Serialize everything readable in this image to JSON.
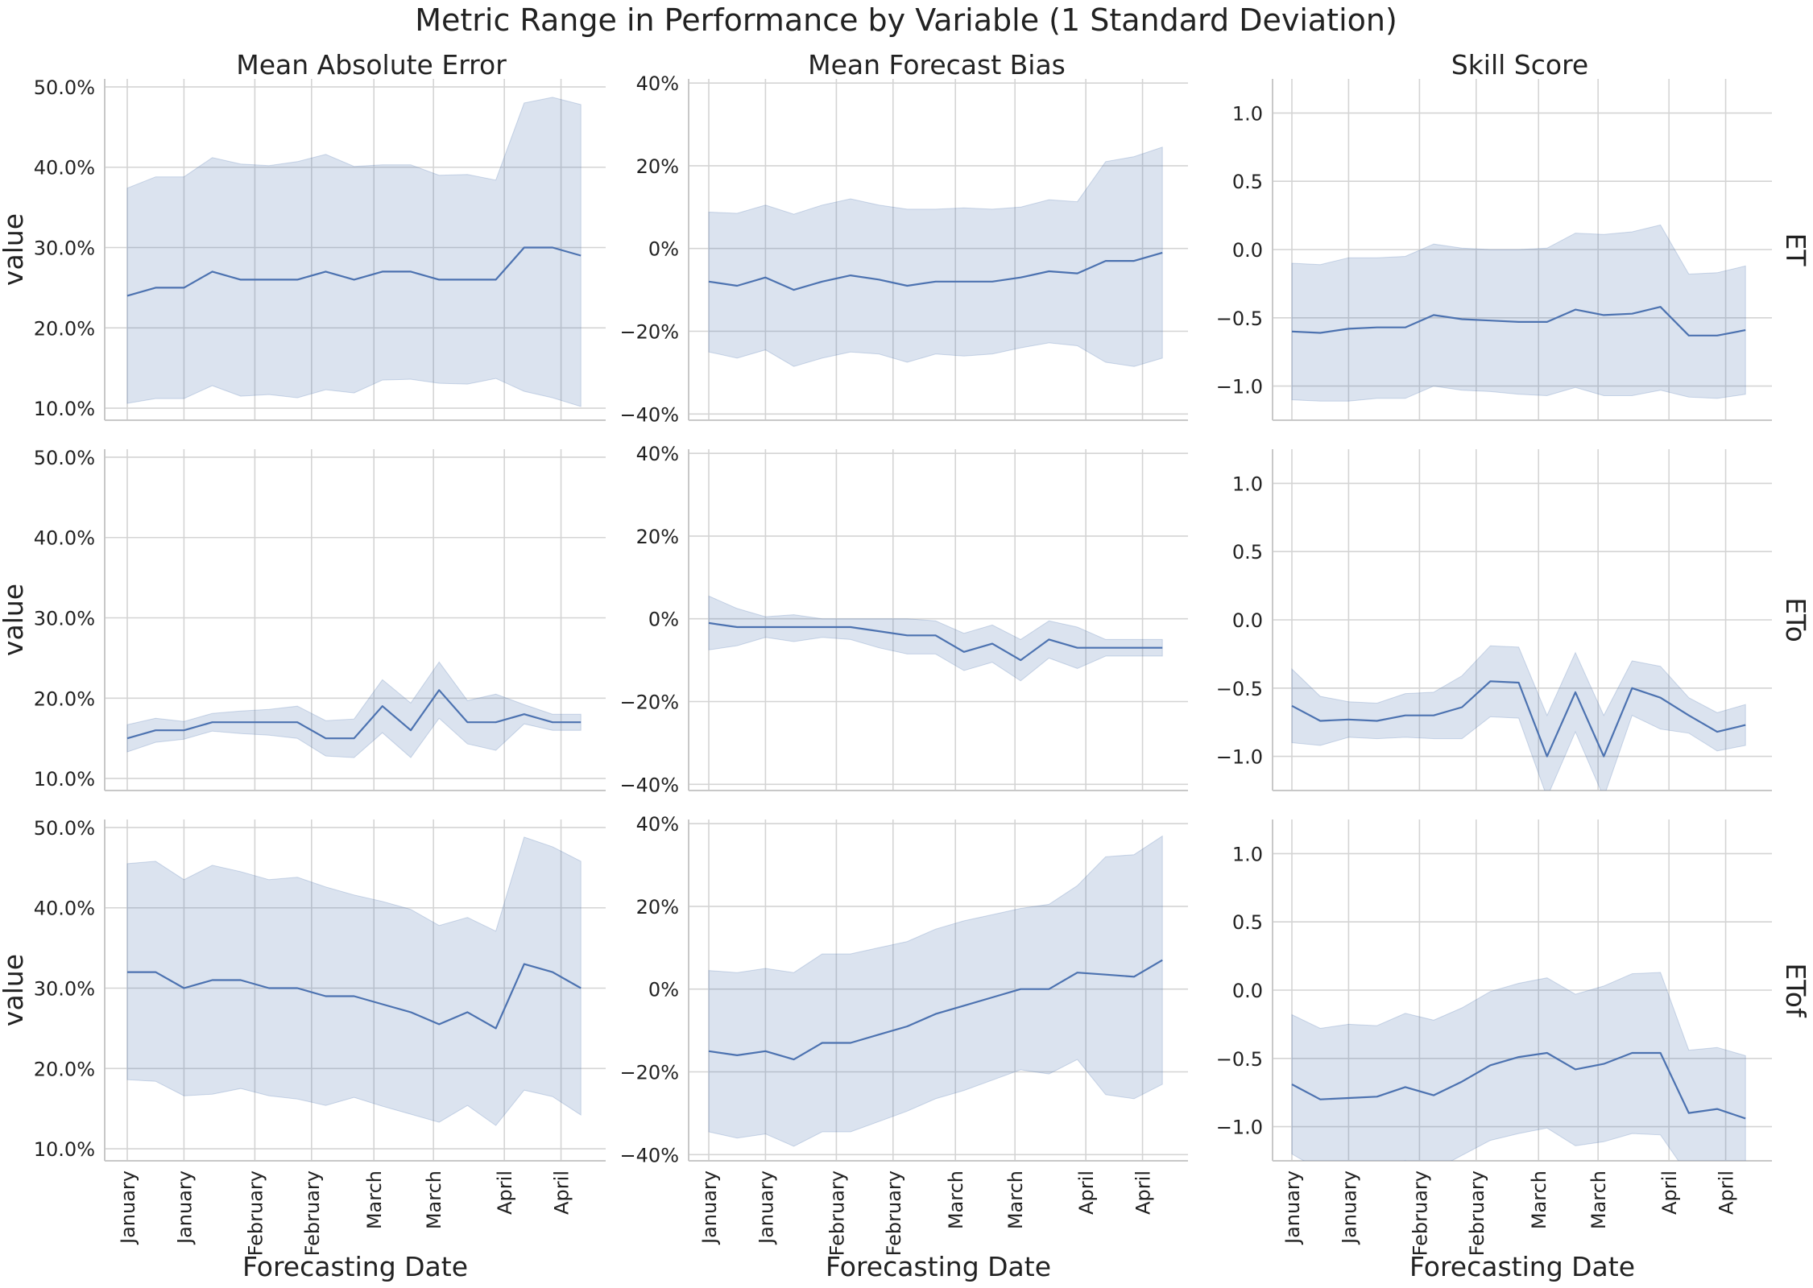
{
  "title": "Metric Range in Performance by Variable (1 Standard Deviation)",
  "columns": [
    "Mean Absolute Error",
    "Mean Forecast Bias",
    "Skill Score"
  ],
  "rows": [
    "ET",
    "ETo",
    "ETof"
  ],
  "xlabel": "Forecasting Date",
  "ylabel": "value",
  "colors": {
    "line": "#4c72b0",
    "band": "#4c72b0",
    "grid": "#d4d4d4"
  },
  "x_tick_labels": [
    "January",
    "January",
    "February",
    "February",
    "March",
    "March",
    "April",
    "April"
  ],
  "x_tick_positions": [
    0,
    2,
    4.5,
    6.5,
    8.7,
    10.8,
    13.3,
    15.3
  ],
  "x_range": [
    -0.45,
    16.75
  ],
  "y_axes": {
    "Mean Absolute Error": {
      "ylim": [
        0.085,
        0.51
      ],
      "ticks": [
        0.1,
        0.2,
        0.3,
        0.4,
        0.5
      ],
      "tick_labels": [
        "10.0%",
        "20.0%",
        "30.0%",
        "40.0%",
        "50.0%"
      ]
    },
    "Mean Forecast Bias": {
      "ylim": [
        -0.415,
        0.41
      ],
      "ticks": [
        -0.4,
        -0.2,
        0,
        0.2,
        0.4
      ],
      "tick_labels": [
        "−40%",
        "−20%",
        "0%",
        "20%",
        "40%"
      ]
    },
    "Skill Score": {
      "ylim": [
        -1.25,
        1.25
      ],
      "ticks": [
        -1.0,
        -0.5,
        0.0,
        0.5,
        1.0
      ],
      "tick_labels": [
        "−1.0",
        "−0.5",
        "0.0",
        "0.5",
        "1.0"
      ]
    }
  },
  "chart_data": [
    {
      "type": "area",
      "row": "ET",
      "col": "Mean Absolute Error",
      "x": [
        0,
        1,
        2,
        3,
        4,
        5,
        6,
        7,
        8,
        9,
        10,
        11,
        12,
        13,
        14,
        15,
        16
      ],
      "mean": [
        0.24,
        0.25,
        0.25,
        0.27,
        0.26,
        0.26,
        0.26,
        0.27,
        0.26,
        0.27,
        0.27,
        0.26,
        0.26,
        0.26,
        0.3,
        0.3,
        0.29
      ],
      "lower": [
        0.106,
        0.112,
        0.112,
        0.128,
        0.115,
        0.117,
        0.113,
        0.123,
        0.119,
        0.135,
        0.136,
        0.131,
        0.13,
        0.137,
        0.121,
        0.113,
        0.102
      ],
      "upper": [
        0.374,
        0.388,
        0.388,
        0.412,
        0.404,
        0.402,
        0.407,
        0.416,
        0.401,
        0.403,
        0.403,
        0.39,
        0.391,
        0.384,
        0.48,
        0.487,
        0.478
      ]
    },
    {
      "type": "area",
      "row": "ET",
      "col": "Mean Forecast Bias",
      "x": [
        0,
        1,
        2,
        3,
        4,
        5,
        6,
        7,
        8,
        9,
        10,
        11,
        12,
        13,
        14,
        15,
        16
      ],
      "mean": [
        -0.08,
        -0.09,
        -0.07,
        -0.1,
        -0.08,
        -0.065,
        -0.075,
        -0.09,
        -0.08,
        -0.08,
        -0.08,
        -0.07,
        -0.055,
        -0.06,
        -0.03,
        -0.03,
        -0.01
      ],
      "lower": [
        -0.25,
        -0.265,
        -0.245,
        -0.285,
        -0.265,
        -0.25,
        -0.255,
        -0.275,
        -0.255,
        -0.26,
        -0.255,
        -0.24,
        -0.228,
        -0.235,
        -0.275,
        -0.285,
        -0.265
      ],
      "upper": [
        0.088,
        0.085,
        0.105,
        0.083,
        0.105,
        0.12,
        0.105,
        0.095,
        0.095,
        0.098,
        0.095,
        0.1,
        0.118,
        0.113,
        0.21,
        0.222,
        0.245
      ]
    },
    {
      "type": "area",
      "row": "ET",
      "col": "Skill Score",
      "x": [
        0,
        1,
        2,
        3,
        4,
        5,
        6,
        7,
        8,
        9,
        10,
        11,
        12,
        13,
        14,
        15,
        16
      ],
      "mean": [
        -0.6,
        -0.61,
        -0.58,
        -0.57,
        -0.57,
        -0.48,
        -0.51,
        -0.52,
        -0.53,
        -0.53,
        -0.44,
        -0.48,
        -0.47,
        -0.42,
        -0.63,
        -0.63,
        -0.59
      ],
      "lower": [
        -1.1,
        -1.11,
        -1.11,
        -1.09,
        -1.09,
        -1.0,
        -1.03,
        -1.04,
        -1.06,
        -1.07,
        -1.01,
        -1.07,
        -1.07,
        -1.03,
        -1.08,
        -1.09,
        -1.06
      ],
      "upper": [
        -0.1,
        -0.11,
        -0.06,
        -0.06,
        -0.05,
        0.04,
        0.01,
        0.0,
        0.0,
        0.01,
        0.12,
        0.11,
        0.13,
        0.18,
        -0.18,
        -0.17,
        -0.12
      ]
    },
    {
      "type": "area",
      "row": "ETo",
      "col": "Mean Absolute Error",
      "x": [
        0,
        1,
        2,
        3,
        4,
        5,
        6,
        7,
        8,
        9,
        10,
        11,
        12,
        13,
        14,
        15,
        16
      ],
      "mean": [
        0.15,
        0.16,
        0.16,
        0.17,
        0.17,
        0.17,
        0.17,
        0.15,
        0.15,
        0.19,
        0.16,
        0.21,
        0.17,
        0.17,
        0.18,
        0.17,
        0.17
      ],
      "lower": [
        0.133,
        0.145,
        0.149,
        0.159,
        0.156,
        0.154,
        0.15,
        0.128,
        0.126,
        0.157,
        0.126,
        0.175,
        0.143,
        0.135,
        0.168,
        0.16,
        0.16
      ],
      "upper": [
        0.167,
        0.175,
        0.171,
        0.181,
        0.184,
        0.186,
        0.19,
        0.172,
        0.174,
        0.223,
        0.194,
        0.245,
        0.197,
        0.205,
        0.192,
        0.18,
        0.18
      ]
    },
    {
      "type": "area",
      "row": "ETo",
      "col": "Mean Forecast Bias",
      "x": [
        0,
        1,
        2,
        3,
        4,
        5,
        6,
        7,
        8,
        9,
        10,
        11,
        12,
        13,
        14,
        15,
        16
      ],
      "mean": [
        -0.01,
        -0.02,
        -0.02,
        -0.02,
        -0.02,
        -0.02,
        -0.03,
        -0.04,
        -0.04,
        -0.08,
        -0.06,
        -0.1,
        -0.05,
        -0.07,
        -0.07,
        -0.07,
        -0.07
      ],
      "lower": [
        -0.075,
        -0.065,
        -0.045,
        -0.055,
        -0.045,
        -0.05,
        -0.07,
        -0.085,
        -0.085,
        -0.125,
        -0.105,
        -0.15,
        -0.095,
        -0.12,
        -0.09,
        -0.09,
        -0.09
      ],
      "upper": [
        0.055,
        0.025,
        0.005,
        0.01,
        0.0,
        0.0,
        0.0,
        0.0,
        -0.005,
        -0.035,
        -0.015,
        -0.05,
        -0.005,
        -0.02,
        -0.05,
        -0.05,
        -0.05
      ]
    },
    {
      "type": "area",
      "row": "ETo",
      "col": "Skill Score",
      "x": [
        0,
        1,
        2,
        3,
        4,
        5,
        6,
        7,
        8,
        9,
        10,
        11,
        12,
        13,
        14,
        15,
        16
      ],
      "mean": [
        -0.63,
        -0.74,
        -0.73,
        -0.74,
        -0.7,
        -0.7,
        -0.64,
        -0.45,
        -0.46,
        -1.0,
        -0.53,
        -1.0,
        -0.5,
        -0.57,
        -0.7,
        -0.82,
        -0.77
      ],
      "lower": [
        -0.9,
        -0.92,
        -0.86,
        -0.87,
        -0.86,
        -0.87,
        -0.87,
        -0.71,
        -0.72,
        -1.3,
        -0.82,
        -1.3,
        -0.7,
        -0.8,
        -0.83,
        -0.96,
        -0.92
      ],
      "upper": [
        -0.36,
        -0.56,
        -0.6,
        -0.61,
        -0.54,
        -0.53,
        -0.41,
        -0.19,
        -0.2,
        -0.7,
        -0.24,
        -0.7,
        -0.3,
        -0.34,
        -0.57,
        -0.68,
        -0.62
      ]
    },
    {
      "type": "area",
      "row": "ETof",
      "col": "Mean Absolute Error",
      "x": [
        0,
        1,
        2,
        3,
        4,
        5,
        6,
        7,
        8,
        9,
        10,
        11,
        12,
        13,
        14,
        15,
        16
      ],
      "mean": [
        0.32,
        0.32,
        0.3,
        0.31,
        0.31,
        0.3,
        0.3,
        0.29,
        0.29,
        0.28,
        0.27,
        0.255,
        0.27,
        0.25,
        0.33,
        0.32,
        0.3
      ],
      "lower": [
        0.186,
        0.184,
        0.166,
        0.168,
        0.175,
        0.166,
        0.162,
        0.154,
        0.164,
        0.153,
        0.143,
        0.133,
        0.154,
        0.129,
        0.173,
        0.165,
        0.142
      ],
      "upper": [
        0.455,
        0.458,
        0.435,
        0.453,
        0.445,
        0.435,
        0.438,
        0.426,
        0.416,
        0.408,
        0.398,
        0.378,
        0.388,
        0.371,
        0.488,
        0.476,
        0.458
      ]
    },
    {
      "type": "area",
      "row": "ETof",
      "col": "Mean Forecast Bias",
      "x": [
        0,
        1,
        2,
        3,
        4,
        5,
        6,
        7,
        8,
        9,
        10,
        11,
        12,
        13,
        14,
        15,
        16
      ],
      "mean": [
        -0.15,
        -0.16,
        -0.15,
        -0.17,
        -0.13,
        -0.13,
        -0.11,
        -0.09,
        -0.06,
        -0.04,
        -0.02,
        0.0,
        0.0,
        0.04,
        0.035,
        0.03,
        0.07
      ],
      "lower": [
        -0.345,
        -0.36,
        -0.35,
        -0.38,
        -0.345,
        -0.345,
        -0.32,
        -0.295,
        -0.265,
        -0.245,
        -0.22,
        -0.195,
        -0.205,
        -0.17,
        -0.255,
        -0.265,
        -0.23
      ],
      "upper": [
        0.045,
        0.04,
        0.05,
        0.04,
        0.085,
        0.085,
        0.1,
        0.115,
        0.145,
        0.165,
        0.18,
        0.195,
        0.205,
        0.25,
        0.32,
        0.325,
        0.37
      ]
    },
    {
      "type": "area",
      "row": "ETof",
      "col": "Skill Score",
      "x": [
        0,
        1,
        2,
        3,
        4,
        5,
        6,
        7,
        8,
        9,
        10,
        11,
        12,
        13,
        14,
        15,
        16
      ],
      "mean": [
        -0.69,
        -0.8,
        -0.79,
        -0.78,
        -0.71,
        -0.77,
        -0.67,
        -0.55,
        -0.49,
        -0.46,
        -0.58,
        -0.54,
        -0.46,
        -0.46,
        -0.9,
        -0.87,
        -0.94
      ],
      "lower": [
        -1.2,
        -1.32,
        -1.33,
        -1.3,
        -1.25,
        -1.32,
        -1.21,
        -1.1,
        -1.05,
        -1.01,
        -1.14,
        -1.11,
        -1.05,
        -1.06,
        -1.36,
        -1.33,
        -1.4
      ],
      "upper": [
        -0.18,
        -0.28,
        -0.25,
        -0.26,
        -0.17,
        -0.22,
        -0.13,
        -0.01,
        0.05,
        0.09,
        -0.03,
        0.03,
        0.12,
        0.13,
        -0.44,
        -0.42,
        -0.48
      ]
    }
  ]
}
